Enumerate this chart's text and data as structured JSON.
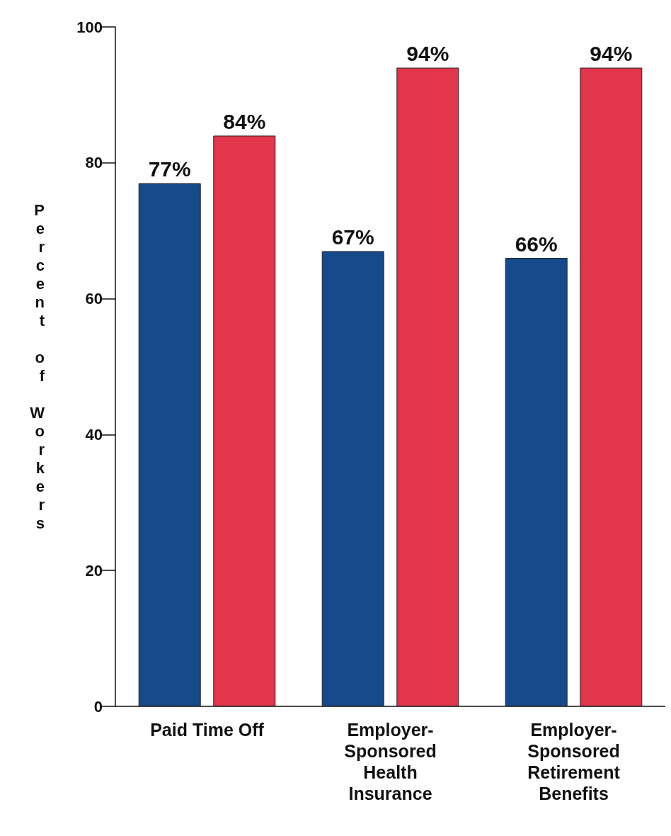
{
  "chart_data": {
    "type": "bar",
    "ylabel": "Percent of Workers",
    "categories": [
      "Paid Time Off",
      "Employer-Sponsored Health Insurance",
      "Employer-Sponsored Retirement Benefits"
    ],
    "series": [
      {
        "color": "#174a8b",
        "values": [
          77,
          67,
          66
        ],
        "value_labels": [
          "77%",
          "67%",
          "66%"
        ]
      },
      {
        "color": "#e2364c",
        "values": [
          84,
          94,
          94
        ],
        "value_labels": [
          "84%",
          "94%",
          "94%"
        ]
      }
    ],
    "ylim": [
      0,
      100
    ],
    "yticks": [
      0,
      20,
      40,
      60,
      80,
      100
    ]
  }
}
